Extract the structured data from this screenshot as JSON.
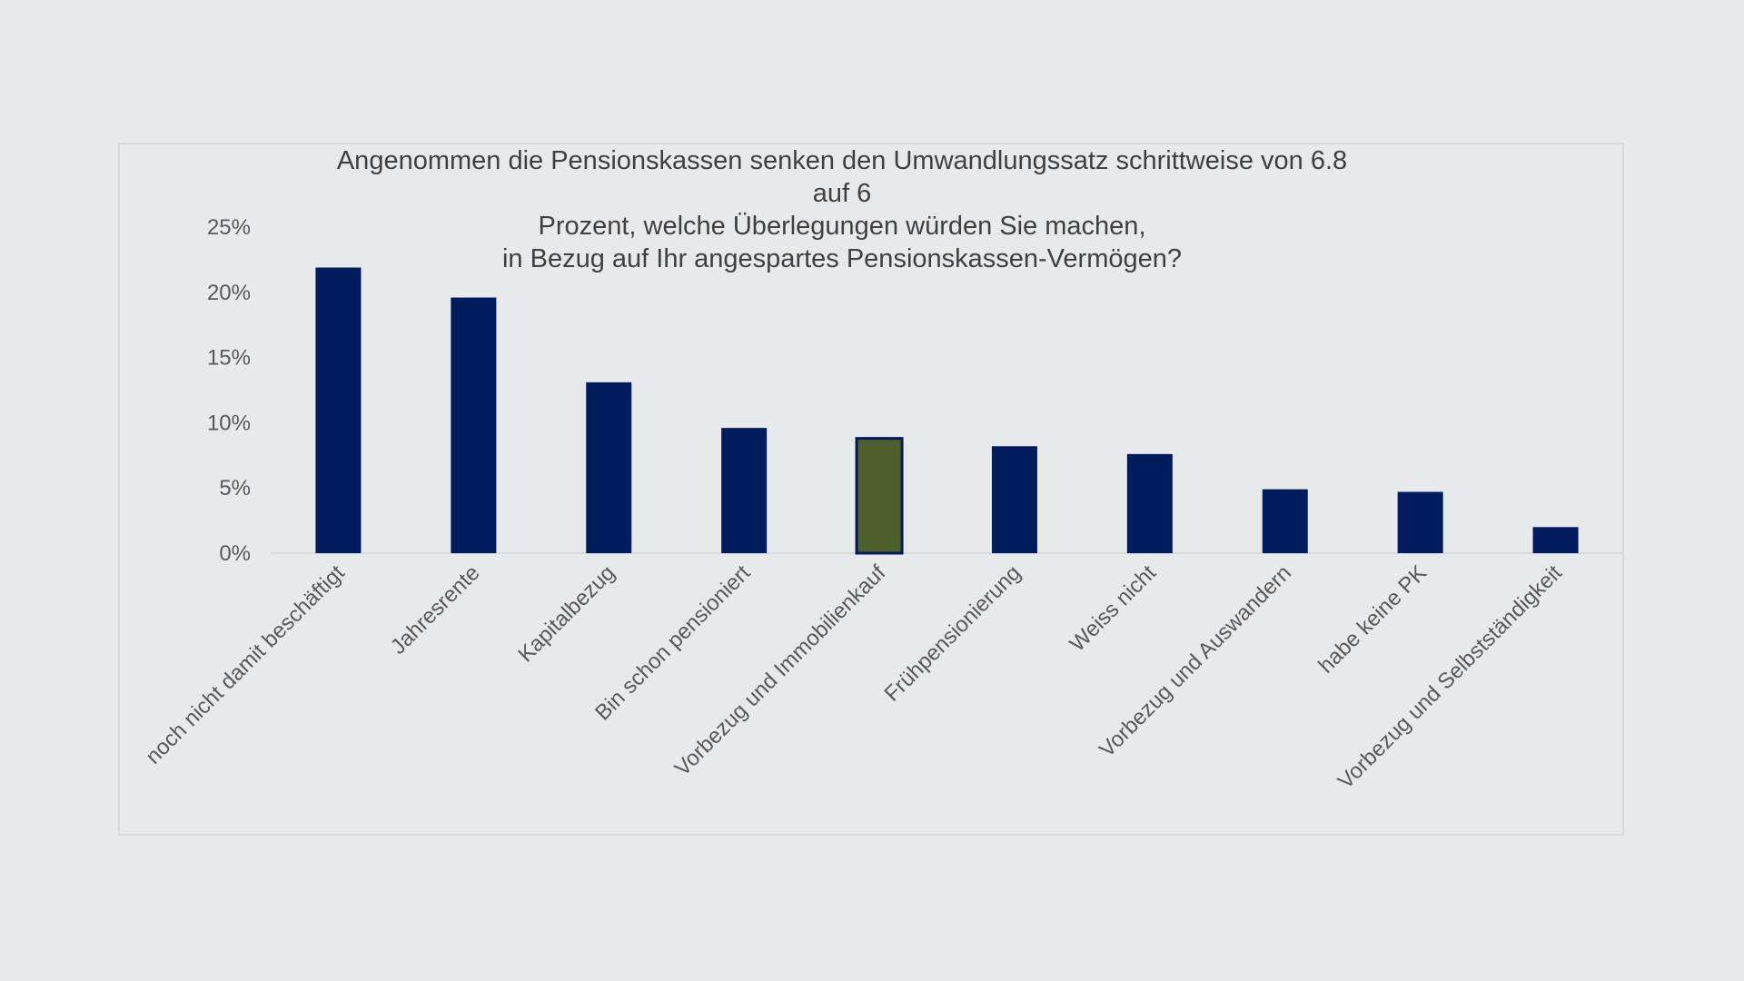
{
  "chart_data": {
    "type": "bar",
    "title_lines": [
      "Angenommen die Pensionskassen senken den Umwandlungssatz schrittweise von 6.8 auf 6",
      "Prozent, welche Überlegungen würden Sie machen,",
      "in Bezug auf Ihr angespartes Pensionskassen-Vermögen?"
    ],
    "xlabel": "",
    "ylabel": "",
    "ylim": [
      0,
      25
    ],
    "y_ticks": [
      {
        "value": 0,
        "label": "0%"
      },
      {
        "value": 5,
        "label": "5%"
      },
      {
        "value": 10,
        "label": "10%"
      },
      {
        "value": 15,
        "label": "15%"
      },
      {
        "value": 20,
        "label": "20%"
      },
      {
        "value": 25,
        "label": "25%"
      }
    ],
    "grid": false,
    "categories": [
      "noch nicht damit beschäftigt",
      "Jahresrente",
      "Kapitalbezug",
      "Bin schon pensioniert",
      "Vorbezug und Immobilienkauf",
      "Frühpensionierung",
      "Weiss nicht",
      "Vorbezug und Auswandern",
      "habe keine PK",
      "Vorbezug und Selbstständigkeit"
    ],
    "values": [
      21.9,
      19.6,
      13.1,
      9.6,
      8.8,
      8.2,
      7.6,
      4.9,
      4.7,
      2.0
    ],
    "colors": {
      "bar": "#001c5c",
      "highlight": "#4e5f2c",
      "highlight_outline": "#001c5c",
      "axis": "#d9d9d9"
    },
    "highlight_index": 4
  }
}
